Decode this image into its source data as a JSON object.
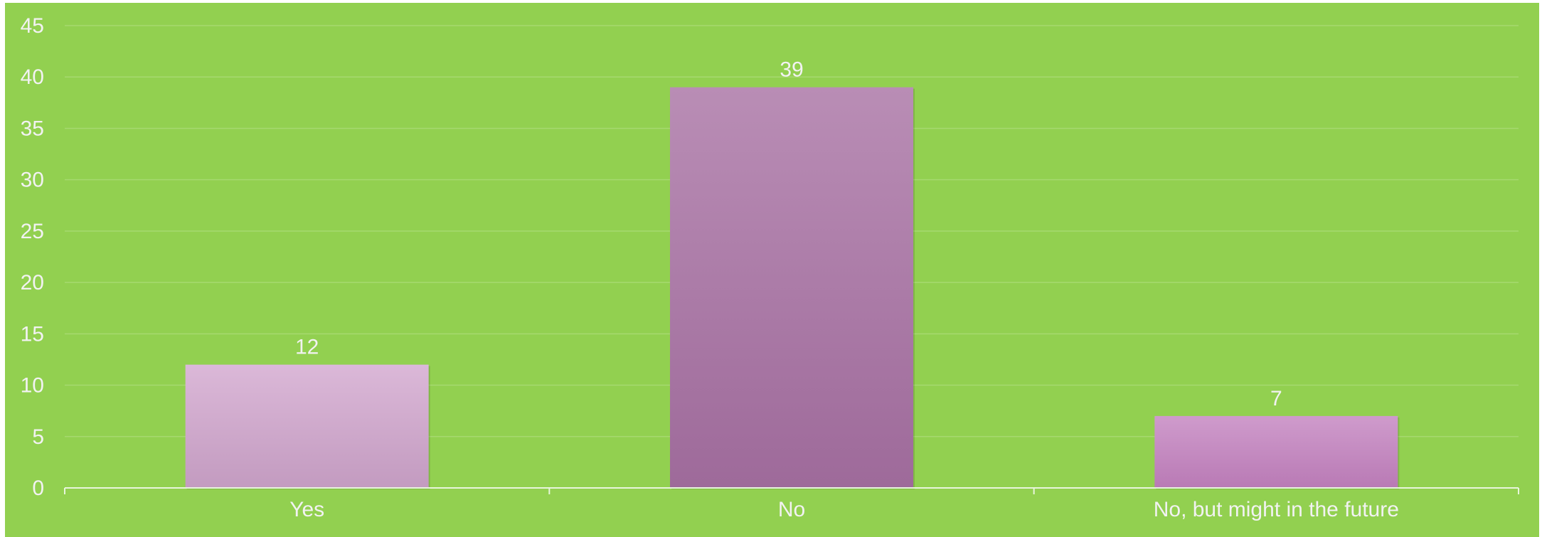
{
  "chart_data": {
    "type": "bar",
    "categories": [
      "Yes",
      "No",
      "No, but might in the future"
    ],
    "values": [
      12,
      39,
      7
    ],
    "data_labels": [
      "12",
      "39",
      "7"
    ],
    "title": "",
    "xlabel": "",
    "ylabel": "",
    "ylim": [
      0,
      45
    ],
    "yticks": [
      "0",
      "5",
      "10",
      "15",
      "20",
      "25",
      "30",
      "35",
      "40",
      "45"
    ],
    "grid": true,
    "legend": "none",
    "colors": {
      "background": "#92d050",
      "gridline": "#a6d96f",
      "axis": "#e8f5dc",
      "text": "#f2f2f2",
      "bars": [
        {
          "top": "#dbb8d8",
          "bottom": "#c39bc0"
        },
        {
          "top": "#b98db5",
          "bottom": "#9e6a9a"
        },
        {
          "top": "#cf9bcc",
          "bottom": "#b97ab5"
        }
      ]
    }
  }
}
